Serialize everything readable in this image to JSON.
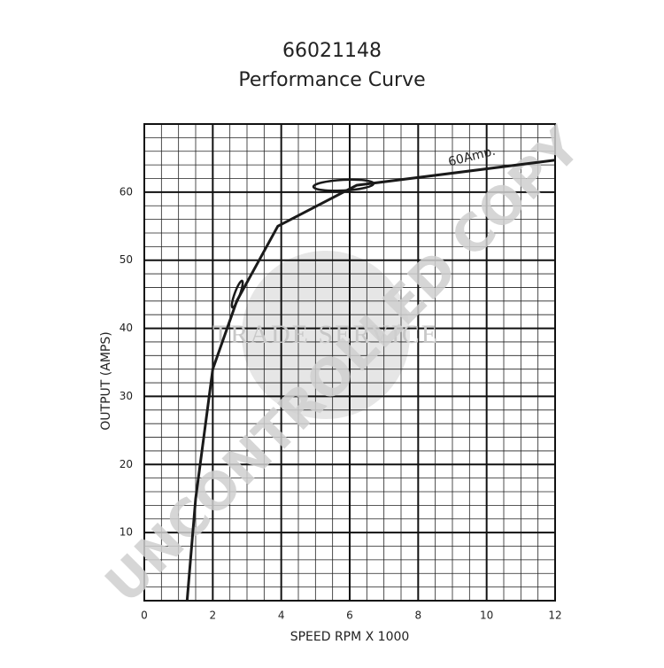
{
  "chart_data": {
    "type": "line",
    "title": "66021148",
    "subtitle": "Performance Curve",
    "x_label": "SPEED RPM X 1000",
    "y_label": "OUTPUT (AMPS)",
    "annotation": "60Amp.",
    "watermarks": [
      "TRADE SERVICE",
      "UNCONTROLLED COPY"
    ],
    "x": [
      1.25,
      1.5,
      2.0,
      2.7,
      3.9,
      6.2,
      12
    ],
    "series": [
      {
        "color": "#1a1a1a",
        "values": [
          0,
          15,
          34,
          44,
          55,
          61,
          64.7
        ]
      }
    ],
    "xlim": [
      0,
      12
    ],
    "xticks": [
      0,
      2,
      4,
      6,
      8,
      10,
      12
    ],
    "ylim": [
      0,
      70
    ],
    "yticks": [
      10,
      20,
      30,
      40,
      50,
      60
    ],
    "grid": true
  }
}
